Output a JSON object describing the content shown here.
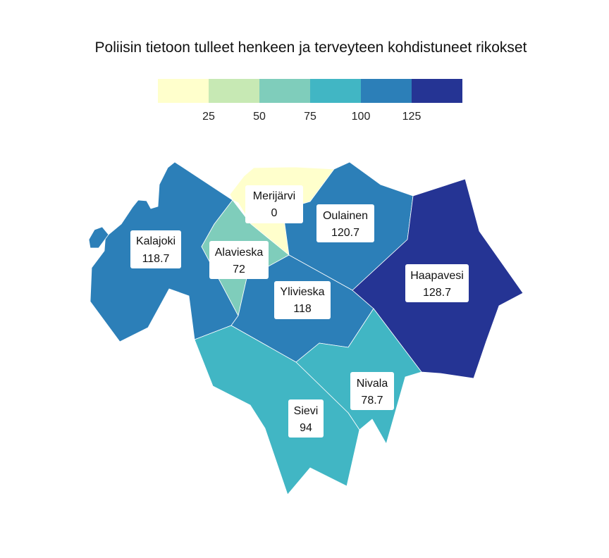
{
  "title": "Poliisin tietoon tulleet henkeen ja terveyteen kohdistuneet rikokset",
  "legend": {
    "colors": [
      "#ffffcc",
      "#c7e9b4",
      "#7fcdbb",
      "#41b6c4",
      "#2c7fb8",
      "#253494"
    ],
    "ticks": [
      "25",
      "50",
      "75",
      "100",
      "125"
    ]
  },
  "regions": [
    {
      "id": "kalajoki",
      "name": "Kalajoki",
      "value": "118.7",
      "color": "#2c7fb8"
    },
    {
      "id": "merijarvi",
      "name": "Merijärvi",
      "value": "0",
      "color": "#ffffcc"
    },
    {
      "id": "oulainen",
      "name": "Oulainen",
      "value": "120.7",
      "color": "#2c7fb8"
    },
    {
      "id": "alavieska",
      "name": "Alavieska",
      "value": "72",
      "color": "#7fcdbb"
    },
    {
      "id": "ylivieska",
      "name": "Ylivieska",
      "value": "118",
      "color": "#2c7fb8"
    },
    {
      "id": "haapavesi",
      "name": "Haapavesi",
      "value": "128.7",
      "color": "#253494"
    },
    {
      "id": "nivala",
      "name": "Nivala",
      "value": "78.7",
      "color": "#41b6c4"
    },
    {
      "id": "sievi",
      "name": "Sievi",
      "value": "94",
      "color": "#41b6c4"
    }
  ]
}
